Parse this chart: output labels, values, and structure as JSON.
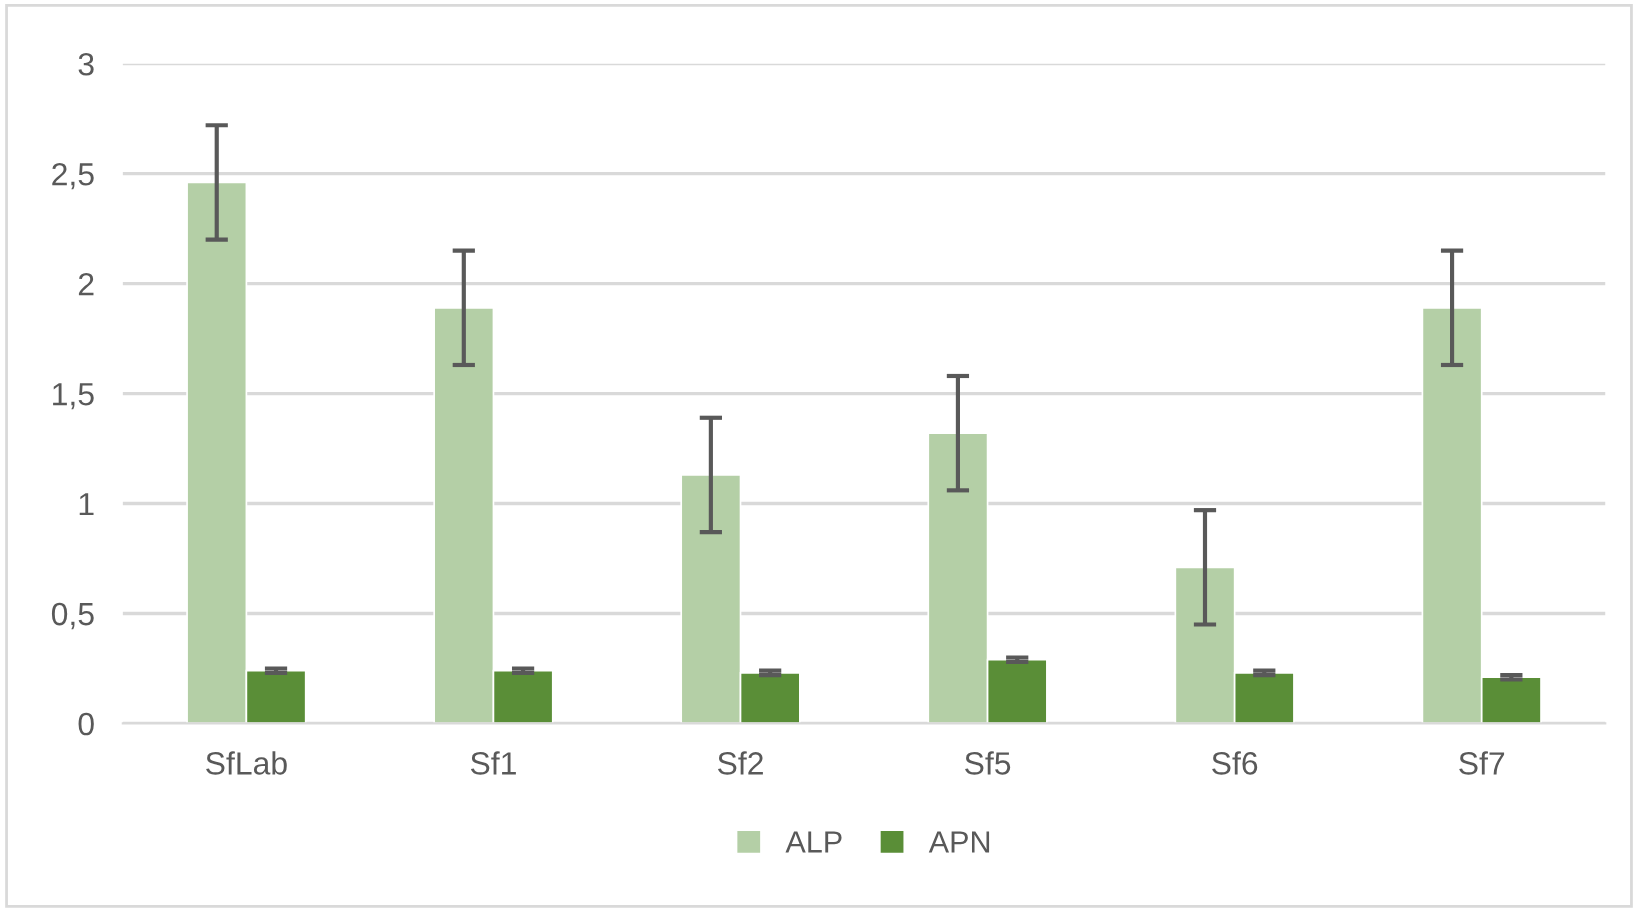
{
  "chart_data": {
    "type": "bar",
    "categories": [
      "SfLab",
      "Sf1",
      "Sf2",
      "Sf5",
      "Sf6",
      "Sf7"
    ],
    "series": [
      {
        "name": "ALP",
        "color": "#b4cfa6",
        "values": [
          2.46,
          1.89,
          1.13,
          1.32,
          0.71,
          1.89
        ],
        "errors": [
          0.26,
          0.26,
          0.26,
          0.26,
          0.26,
          0.26
        ]
      },
      {
        "name": "APN",
        "color": "#5a8e37",
        "values": [
          0.24,
          0.24,
          0.23,
          0.29,
          0.23,
          0.21
        ],
        "errors": [
          0.01,
          0.01,
          0.01,
          0.01,
          0.01,
          0.01
        ]
      }
    ],
    "ylim": [
      0,
      3
    ],
    "yticks": [
      {
        "value": 0,
        "label": "0"
      },
      {
        "value": 0.5,
        "label": "0,5"
      },
      {
        "value": 1,
        "label": "1"
      },
      {
        "value": 1.5,
        "label": "1,5"
      },
      {
        "value": 2,
        "label": "2"
      },
      {
        "value": 2.5,
        "label": "2,5"
      },
      {
        "value": 3,
        "label": "3"
      }
    ],
    "grid": "y",
    "legend": "bottom"
  }
}
